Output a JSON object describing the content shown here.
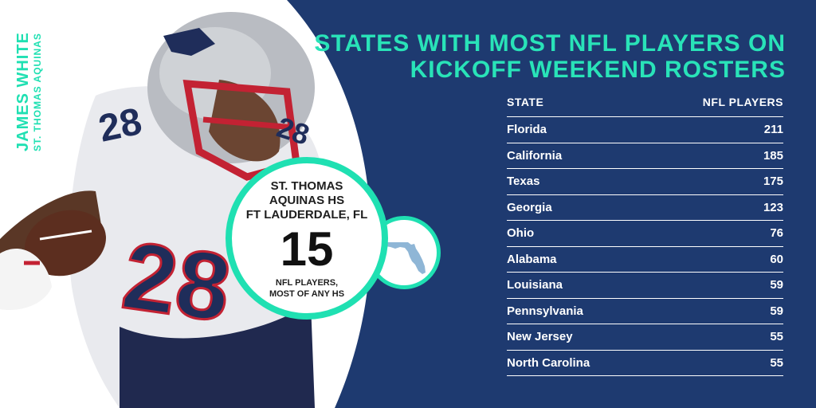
{
  "player": {
    "name": "JAMES WHITE",
    "school": "ST. THOMAS AQUINAS"
  },
  "title": "STATES WITH MOST NFL PLAYERS ON KICKOFF WEEKEND ROSTERS",
  "table": {
    "headers": [
      "STATE",
      "NFL PLAYERS"
    ],
    "rows": [
      {
        "state": "Florida",
        "players": "211"
      },
      {
        "state": "California",
        "players": "185"
      },
      {
        "state": "Texas",
        "players": "175"
      },
      {
        "state": "Georgia",
        "players": "123"
      },
      {
        "state": "Ohio",
        "players": "76"
      },
      {
        "state": "Alabama",
        "players": "60"
      },
      {
        "state": "Louisiana",
        "players": "59"
      },
      {
        "state": "Pennsylvania",
        "players": "59"
      },
      {
        "state": "New Jersey",
        "players": "55"
      },
      {
        "state": "North Carolina",
        "players": "55"
      }
    ]
  },
  "callout": {
    "school_line1": "ST. THOMAS",
    "school_line2": "AQUINAS HS",
    "location": "FT LAUDERDALE, FL",
    "count": "15",
    "desc_line1": "NFL PLAYERS,",
    "desc_line2": "MOST OF ANY HS"
  },
  "colors": {
    "background": "#1e3a70",
    "accent": "#1fe0b2",
    "panel": "#ffffff"
  },
  "icons": {
    "state_shape": "florida-icon"
  }
}
